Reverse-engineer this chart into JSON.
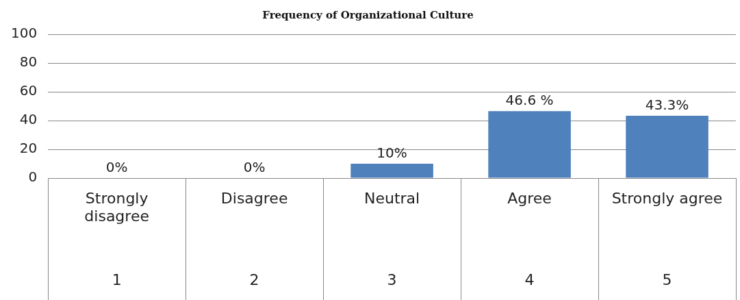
{
  "chart_data": {
    "type": "bar",
    "title": "Frequency of Organizational Culture",
    "categories": [
      "Strongly disagree",
      "Disagree",
      "Neutral",
      "Agree",
      "Strongly agree"
    ],
    "values": [
      0,
      0,
      10,
      46.6,
      43.3
    ],
    "value_labels": [
      "0%",
      "0%",
      "10%",
      "46.6 %",
      "43.3%"
    ],
    "color": "#4f81bd",
    "ylim": [
      0,
      100
    ],
    "yticks": [
      0,
      20,
      40,
      60,
      80,
      100
    ],
    "grid": "y",
    "legend": false,
    "annotations": [
      "1",
      "2",
      "3",
      "4",
      "5"
    ]
  }
}
